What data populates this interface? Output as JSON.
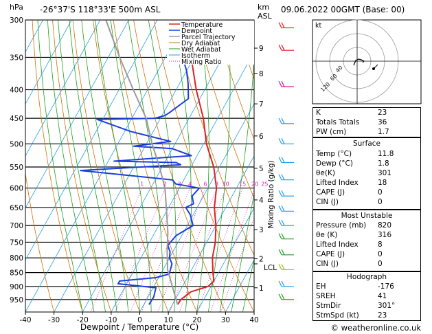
{
  "header": {
    "hpa_label": "hPa",
    "location": "-26°37'S  118°33'E  500m  ASL",
    "km_label": "km",
    "asl_label": "ASL",
    "datetime": "09.06.2022  00GMT  (Base: 00)"
  },
  "chart_data": {
    "type": "line",
    "xlabel": "Dewpoint / Temperature (°C)",
    "ylabel": "hPa",
    "xlim": [
      -40,
      40
    ],
    "ylim": [
      1000,
      300
    ],
    "y_scale": "log",
    "x_ticks": [
      -40,
      -30,
      -20,
      -10,
      0,
      10,
      20,
      30,
      40
    ],
    "pressure_ticks": [
      300,
      350,
      400,
      450,
      500,
      550,
      600,
      650,
      700,
      750,
      800,
      850,
      900,
      950
    ],
    "km_ticks": [
      {
        "label": "9",
        "p": 337
      },
      {
        "label": "8",
        "p": 374
      },
      {
        "label": "7",
        "p": 424
      },
      {
        "label": "6",
        "p": 484
      },
      {
        "label": "5",
        "p": 553
      },
      {
        "label": "4",
        "p": 630
      },
      {
        "label": "3",
        "p": 712
      },
      {
        "label": "2",
        "p": 803
      },
      {
        "label": "1",
        "p": 905
      }
    ],
    "lcl_label": "LCL",
    "lcl_p": 820,
    "right_axis_label": "Mixing Ratio (g/kg)",
    "mixing_ratio_labels": [
      "1",
      "2",
      "3",
      "4",
      "6",
      "8",
      "10",
      "15",
      "20",
      "25"
    ],
    "legend": [
      "Temperature",
      "Dewpoint",
      "Parcel Trajectory",
      "Dry Adiabat",
      "Wet Adiabat",
      "Isotherm",
      "Mixing Ratio"
    ],
    "colors": {
      "temperature": "#e02020",
      "dewpoint": "#1a3de0",
      "parcel": "#9a9a9a",
      "dry_adiabat": "#d07000",
      "wet_adiabat": "#1aa01a",
      "isotherm": "#20a0e0",
      "mixing_ratio": "#e020b0"
    },
    "series": [
      {
        "name": "Temperature",
        "points": [
          [
            11.8,
            970
          ],
          [
            12,
            950
          ],
          [
            14,
            920
          ],
          [
            19,
            900
          ],
          [
            20,
            880
          ],
          [
            18,
            850
          ],
          [
            15,
            800
          ],
          [
            13,
            750
          ],
          [
            10,
            700
          ],
          [
            6,
            650
          ],
          [
            3,
            600
          ],
          [
            -2,
            550
          ],
          [
            -9,
            500
          ],
          [
            -15,
            450
          ],
          [
            -23,
            400
          ],
          [
            -31,
            350
          ],
          [
            -40,
            300
          ]
        ]
      },
      {
        "name": "Dewpoint",
        "points": [
          [
            1.8,
            970
          ],
          [
            2,
            940
          ],
          [
            1,
            905
          ],
          [
            -13,
            890
          ],
          [
            -13,
            880
          ],
          [
            -1,
            868
          ],
          [
            3,
            855
          ],
          [
            2,
            820
          ],
          [
            0,
            800
          ],
          [
            -1,
            780
          ],
          [
            -3,
            760
          ],
          [
            -2,
            730
          ],
          [
            2,
            700
          ],
          [
            -1,
            670
          ],
          [
            -4,
            650
          ],
          [
            -2,
            640
          ],
          [
            -4,
            620
          ],
          [
            -3,
            600
          ],
          [
            -12,
            590
          ],
          [
            -14,
            580
          ],
          [
            -48,
            558
          ],
          [
            -14,
            545
          ],
          [
            -16,
            540
          ],
          [
            -38,
            537
          ],
          [
            -12,
            525
          ],
          [
            -20,
            510
          ],
          [
            -34,
            505
          ],
          [
            -22,
            495
          ],
          [
            -34,
            480
          ],
          [
            -38,
            475
          ],
          [
            -52,
            452
          ],
          [
            -32,
            450
          ],
          [
            -29,
            445
          ],
          [
            -28,
            440
          ],
          [
            -24,
            415
          ],
          [
            -27,
            390
          ],
          [
            -30,
            370
          ],
          [
            -34,
            350
          ],
          [
            -32,
            335
          ],
          [
            -36,
            325
          ],
          [
            -36,
            320
          ],
          [
            -39,
            300
          ]
        ]
      },
      {
        "name": "Parcel Trajectory",
        "points": [
          [
            11.8,
            970
          ],
          [
            1.6,
            840
          ],
          [
            -2,
            780
          ],
          [
            -5.5,
            720
          ],
          [
            -10,
            660
          ],
          [
            -15,
            600
          ],
          [
            -21,
            550
          ],
          [
            -28,
            500
          ],
          [
            -35,
            450
          ],
          [
            -45,
            400
          ],
          [
            -56,
            350
          ],
          [
            -68,
            300
          ]
        ]
      }
    ]
  },
  "indices": {
    "rows": [
      {
        "k": "K",
        "v": "23"
      },
      {
        "k": "Totals Totals",
        "v": "36"
      },
      {
        "k": "PW (cm)",
        "v": "1.7"
      }
    ]
  },
  "surface": {
    "title": "Surface",
    "rows": [
      {
        "k": "Temp (°C)",
        "v": "11.8"
      },
      {
        "k": "Dewp (°C)",
        "v": "1.8"
      },
      {
        "k": "θe(K)",
        "v": "301"
      },
      {
        "k": "Lifted Index",
        "v": "18"
      },
      {
        "k": "CAPE (J)",
        "v": "0"
      },
      {
        "k": "CIN (J)",
        "v": "0"
      }
    ]
  },
  "most_unstable": {
    "title": "Most Unstable",
    "rows": [
      {
        "k": "Pressure (mb)",
        "v": "820"
      },
      {
        "k": "θe (K)",
        "v": "316"
      },
      {
        "k": "Lifted Index",
        "v": "8"
      },
      {
        "k": "CAPE (J)",
        "v": "0"
      },
      {
        "k": "CIN (J)",
        "v": "0"
      }
    ]
  },
  "hodograph": {
    "title": "Hodograph",
    "kt_label": "kt",
    "rings": [
      "120",
      "60",
      "40"
    ],
    "rows": [
      {
        "k": "EH",
        "v": "-176"
      },
      {
        "k": "SREH",
        "v": "41"
      },
      {
        "k": "StmDir",
        "v": "301°"
      },
      {
        "k": "StmSpd (kt)",
        "v": "23"
      }
    ]
  },
  "footer": {
    "copyright": "© weatheronline.co.uk"
  }
}
